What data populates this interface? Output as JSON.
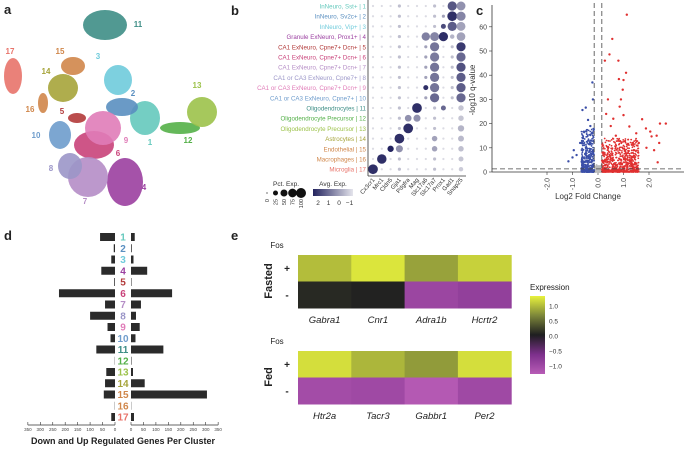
{
  "panel_labels": {
    "a": "a",
    "b": "b",
    "c": "c",
    "d": "d",
    "e": "e"
  },
  "colors": {
    "clusters": [
      "#65c9bd",
      "#5a8fc0",
      "#6fcbdb",
      "#9b3fa0",
      "#b23a3a",
      "#c9427a",
      "#b58dc6",
      "#9b96c8",
      "#e07cb8",
      "#6e9ccc",
      "#3e8e86",
      "#54b048",
      "#9cc24a",
      "#a6a43a",
      "#d0864a",
      "#d0864a",
      "#e8736a"
    ],
    "up": "#e03030",
    "down": "#3b4fa8"
  },
  "chart_data": [
    {
      "type": "scatter",
      "title": "UMAP clusters",
      "clusters": [
        "1",
        "2",
        "3",
        "4",
        "5",
        "6",
        "7",
        "8",
        "9",
        "10",
        "11",
        "12",
        "13",
        "14",
        "15",
        "16",
        "17"
      ]
    },
    {
      "type": "dotplot",
      "rows": [
        "InNeuro, Sst+ | 1",
        "InNeuro, Sv2c+ | 2",
        "InNeuro, Vip+ | 3",
        "Granule ExNeuro, Prox1+ | 4",
        "CA1 ExNeuro, Cpne7+ Dcn+ | 5",
        "CA1 ExNeuro, Cpne7+ Dcn+ | 6",
        "CA1 ExNeuro, Cpne7+ Dcn+ | 7",
        "CA1 or CA3 ExNeuro, Cpne7+ | 8",
        "CA1 or CA3 ExNeuro, Cpne7+ Dcn+ | 9",
        "CA1 or CA3 ExNeuro, Cpne7+ | 10",
        "Oligodendrocytes | 11",
        "Oligodendrocyte Precursor | 12",
        "Oligodendrocyte Precursor | 13",
        "Astrocytes | 14",
        "Endothelial | 15",
        "Macrophages | 16",
        "Microglia | 17"
      ],
      "genes": [
        "Cx3cr1",
        "Mrc1",
        "Cldn5",
        "Gja1",
        "Pdgfra",
        "Mag",
        "Slc17a6",
        "Slc17a7",
        "Prox1",
        "Gad1",
        "Snap25"
      ],
      "pct": [
        [
          5,
          5,
          5,
          10,
          5,
          5,
          5,
          10,
          5,
          85,
          80
        ],
        [
          5,
          5,
          5,
          10,
          5,
          5,
          5,
          10,
          10,
          95,
          85
        ],
        [
          5,
          5,
          5,
          10,
          5,
          5,
          5,
          10,
          25,
          85,
          80
        ],
        [
          5,
          5,
          5,
          10,
          5,
          5,
          70,
          80,
          85,
          20,
          75
        ],
        [
          5,
          5,
          5,
          10,
          5,
          5,
          10,
          85,
          5,
          10,
          85
        ],
        [
          5,
          5,
          5,
          10,
          5,
          5,
          10,
          85,
          5,
          10,
          85
        ],
        [
          5,
          5,
          5,
          10,
          5,
          5,
          10,
          85,
          5,
          10,
          85
        ],
        [
          5,
          5,
          5,
          10,
          5,
          5,
          10,
          85,
          5,
          10,
          85
        ],
        [
          5,
          5,
          5,
          10,
          5,
          5,
          25,
          85,
          5,
          10,
          85
        ],
        [
          5,
          5,
          5,
          10,
          5,
          5,
          10,
          85,
          5,
          10,
          85
        ],
        [
          5,
          5,
          5,
          10,
          5,
          95,
          5,
          10,
          25,
          5,
          30
        ],
        [
          5,
          5,
          5,
          10,
          45,
          50,
          5,
          10,
          5,
          5,
          30
        ],
        [
          5,
          5,
          5,
          10,
          95,
          5,
          5,
          10,
          5,
          5,
          40
        ],
        [
          5,
          5,
          5,
          95,
          5,
          5,
          5,
          30,
          5,
          5,
          35
        ],
        [
          5,
          5,
          40,
          50,
          5,
          5,
          5,
          30,
          5,
          5,
          30
        ],
        [
          5,
          90,
          5,
          10,
          5,
          5,
          5,
          10,
          5,
          5,
          25
        ],
        [
          95,
          5,
          5,
          10,
          5,
          5,
          5,
          10,
          5,
          5,
          20
        ]
      ],
      "avg": [
        [
          -1,
          -1,
          -1,
          -0.5,
          -1,
          -1,
          -1,
          -0.5,
          -1,
          1.3,
          0.3
        ],
        [
          -1,
          -1,
          -1,
          -0.5,
          -1,
          -1,
          -1,
          -0.5,
          0,
          2,
          0.5
        ],
        [
          -1,
          -1,
          -1,
          -0.5,
          -1,
          -1,
          -1,
          -0.5,
          1.5,
          1.2,
          0
        ],
        [
          -1,
          -1,
          -1,
          -0.5,
          -1,
          -1,
          0.6,
          0.5,
          2,
          -0.3,
          0
        ],
        [
          -1,
          -1,
          -1,
          -0.5,
          -1,
          -1,
          0,
          0.8,
          -1,
          -0.5,
          1.8
        ],
        [
          -1,
          -1,
          -1,
          -0.5,
          -1,
          -1,
          0,
          0.7,
          -1,
          -0.5,
          1
        ],
        [
          -1,
          -1,
          -1,
          -0.5,
          -1,
          -1,
          0,
          0.8,
          -1,
          -0.5,
          1.4
        ],
        [
          -1,
          -1,
          -1,
          -0.5,
          -1,
          -1,
          0,
          0.8,
          -1,
          -0.5,
          1.2
        ],
        [
          -1,
          -1,
          -1,
          -0.5,
          -1,
          -1,
          2,
          0.8,
          -1,
          -0.5,
          1.2
        ],
        [
          -1,
          -1,
          -1,
          -0.5,
          -1,
          -1,
          0,
          1,
          -1,
          -0.5,
          1
        ],
        [
          -1,
          -1,
          -1,
          -0.5,
          -1,
          2,
          -1,
          -0.5,
          1,
          -1,
          -0.6
        ],
        [
          -1,
          -1,
          -1,
          -0.5,
          0.3,
          0.3,
          -1,
          -0.5,
          -1,
          -1,
          -0.6
        ],
        [
          -1,
          -1,
          -1,
          -0.5,
          2,
          -1,
          -1,
          -0.5,
          -1,
          -1,
          -0.3
        ],
        [
          -1,
          -1,
          -1,
          2,
          -1,
          -1,
          -1,
          0,
          -1,
          -1,
          -0.4
        ],
        [
          -1,
          -1,
          2.2,
          0.3,
          -1,
          -1,
          -1,
          0,
          -1,
          -1,
          -0.5
        ],
        [
          -1,
          2,
          -1,
          -0.5,
          -1,
          -1,
          -1,
          -0.5,
          -1,
          -1,
          -0.6
        ],
        [
          2,
          -1,
          -1,
          -0.5,
          -1,
          -1,
          -1,
          -0.5,
          -1,
          -1,
          -0.7
        ]
      ],
      "legend": {
        "pct_title": "Pct. Exp.",
        "pct_ticks": [
          "0",
          "25",
          "50",
          "75",
          "100"
        ],
        "avg_title": "Avg. Exp.",
        "avg_ticks": [
          "2",
          "1",
          "0",
          "−1"
        ]
      }
    },
    {
      "type": "scatter",
      "title": "",
      "xlabel": "Log2 Fold Change",
      "ylabel": "-log10 q-value",
      "xlim": [
        -3.2,
        3.4
      ],
      "ylim": [
        0,
        70
      ],
      "xticks": [
        "-2.0",
        "-1.0",
        "0.0",
        "1.0",
        "2.0"
      ],
      "xtick_values": [
        -2,
        -1,
        0,
        1,
        2
      ],
      "yticks": [
        "0",
        "10",
        "20",
        "30",
        "40",
        "50",
        "60"
      ],
      "ytick_values": [
        0,
        10,
        20,
        30,
        40,
        50,
        60
      ],
      "thresholds": {
        "fc": [
          -0.15,
          0.15
        ],
        "q": 1.3
      },
      "up_points": [
        [
          1.13,
          65
        ],
        [
          0.56,
          55
        ],
        [
          0.45,
          48.6
        ],
        [
          0.8,
          46
        ],
        [
          0.27,
          46
        ],
        [
          1.1,
          41
        ],
        [
          0.82,
          38.4
        ],
        [
          1.0,
          38
        ],
        [
          0.97,
          34
        ],
        [
          0.39,
          30
        ],
        [
          0.9,
          30
        ],
        [
          0.85,
          27
        ],
        [
          0.32,
          24
        ],
        [
          1.0,
          23.5
        ],
        [
          1.73,
          21.8
        ],
        [
          2.43,
          20
        ],
        [
          2.66,
          20
        ],
        [
          1.88,
          18
        ],
        [
          2.05,
          16.7
        ],
        [
          2.1,
          14.7
        ],
        [
          2.4,
          12
        ],
        [
          2.3,
          15
        ],
        [
          2.34,
          4
        ],
        [
          1.5,
          16
        ],
        [
          1.23,
          18.8
        ],
        [
          1.6,
          12
        ],
        [
          1.9,
          10
        ],
        [
          2.2,
          9
        ],
        [
          1.4,
          9
        ],
        [
          0.6,
          22
        ],
        [
          0.5,
          19
        ],
        [
          0.7,
          15
        ]
      ],
      "down_points": [
        [
          -0.48,
          26.6
        ],
        [
          -0.61,
          25.6
        ],
        [
          -0.22,
          37
        ],
        [
          -0.2,
          30
        ],
        [
          -0.95,
          9
        ],
        [
          -1.16,
          4.4
        ],
        [
          -0.84,
          7
        ],
        [
          -0.39,
          21.5
        ],
        [
          -0.3,
          19
        ],
        [
          -0.7,
          12
        ],
        [
          -1.0,
          6
        ]
      ],
      "dense_up": {
        "x": [
          0.15,
          1.6
        ],
        "y": [
          0,
          14
        ],
        "n": 650
      },
      "dense_down": {
        "x": [
          -0.65,
          -0.15
        ],
        "y": [
          0,
          18
        ],
        "n": 400
      }
    },
    {
      "type": "bar",
      "orientation": "horizontal-diverging",
      "categories": [
        "1",
        "2",
        "3",
        "4",
        "5",
        "6",
        "7",
        "8",
        "9",
        "10",
        "11",
        "12",
        "13",
        "14",
        "15",
        "16",
        "17"
      ],
      "series": [
        {
          "name": "Down",
          "values": [
            60,
            5,
            15,
            55,
            3,
            225,
            40,
            100,
            30,
            18,
            75,
            1,
            35,
            40,
            45,
            1,
            15
          ]
        },
        {
          "name": "Up",
          "values": [
            15,
            3,
            10,
            65,
            2,
            165,
            40,
            20,
            35,
            18,
            130,
            2,
            8,
            55,
            305,
            1,
            12
          ]
        }
      ],
      "xticks_left": [
        "350",
        "300",
        "250",
        "200",
        "150",
        "100",
        "50",
        "0"
      ],
      "xticks_right": [
        "0",
        "50",
        "100",
        "150",
        "200",
        "250",
        "300",
        "350"
      ],
      "xlim": [
        0,
        350
      ],
      "xlabel": "Down and Up Regulated Genes Per Cluster"
    },
    {
      "type": "heatmap",
      "legend_title": "Expression",
      "legend_ticks": [
        "1.0",
        "0.5",
        "0.0",
        "−0.5",
        "−1.0"
      ],
      "legend_tick_values": [
        1,
        0.5,
        0,
        -0.5,
        -1
      ],
      "range": [
        -1.2,
        1.3
      ],
      "row_title": "Fos",
      "row_labels": [
        "+",
        "-"
      ],
      "panels": [
        {
          "condition": "Fasted",
          "genes": [
            "Gabra1",
            "Cnr1",
            "Adra1b",
            "Hcrtr2"
          ],
          "values": [
            [
              0.9,
              1.2,
              0.7,
              1.05
            ],
            [
              0.05,
              0.02,
              -0.85,
              -0.75
            ]
          ]
        },
        {
          "condition": "Fed",
          "genes": [
            "Htr2a",
            "Tacr3",
            "Gabbr1",
            "Per2"
          ],
          "values": [
            [
              1.15,
              0.85,
              0.65,
              1.15
            ],
            [
              -0.95,
              -0.9,
              -1.15,
              -0.9
            ]
          ]
        }
      ]
    }
  ]
}
